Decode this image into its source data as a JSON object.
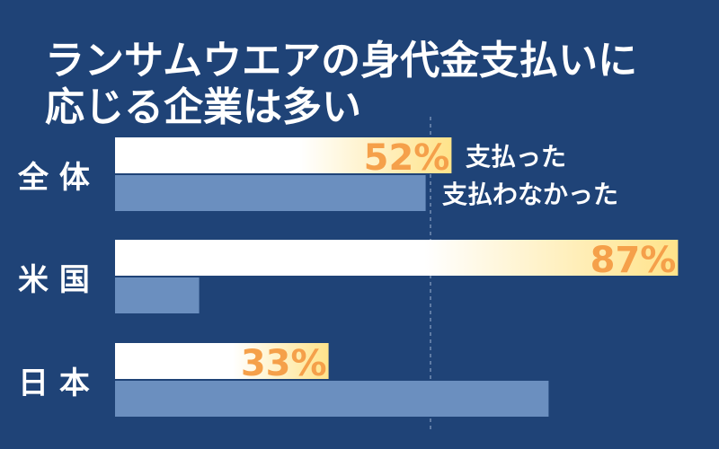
{
  "title_lines": [
    "ランサムウエアの身代金支払いに",
    "応じる企業は多い"
  ],
  "chart_data": {
    "type": "bar",
    "title": "ランサムウエアの身代金支払いに応じる企業は多い",
    "categories": [
      "全 体",
      "米 国",
      "日 本"
    ],
    "series": [
      {
        "name": "支払った",
        "values": [
          52,
          87,
          33
        ],
        "labels": [
          "52%",
          "87%",
          "33%"
        ]
      },
      {
        "name": "支払わなかった",
        "values": [
          48,
          13,
          67
        ]
      }
    ],
    "xlim": [
      0,
      100
    ],
    "unit": "%",
    "grid": "dashed vertical lines",
    "legend": "right of first category",
    "colors": {
      "background": "#1f4377",
      "paid_start": "#ffffff",
      "paid_end": "#ffe38a",
      "not_paid": "#6b8fbf",
      "label": "#f5a04a",
      "text": "#ffffff",
      "grid": "#9fb3d1"
    }
  }
}
